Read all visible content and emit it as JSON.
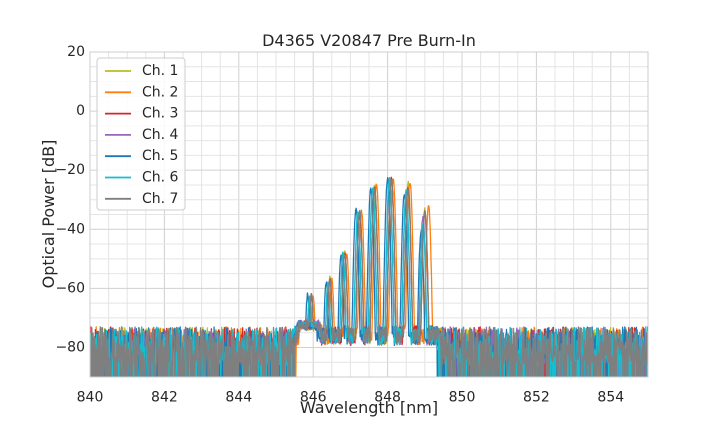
{
  "chart_data": {
    "type": "line",
    "title": "D4365 V20847 Pre Burn-In",
    "xlabel": "Wavelength [nm]",
    "ylabel": "Optical Power [dB]",
    "xlim": [
      840,
      855
    ],
    "ylim": [
      -90,
      20
    ],
    "xticks": [
      840,
      842,
      844,
      846,
      848,
      850,
      852,
      854
    ],
    "xtick_labels": [
      "840",
      "842",
      "844",
      "846",
      "848",
      "850",
      "852",
      "854"
    ],
    "yticks": [
      20,
      0,
      -20,
      -40,
      -60,
      -80
    ],
    "ytick_labels": [
      "20",
      "0",
      "−20",
      "−40",
      "−60",
      "−80"
    ],
    "grid": true,
    "legend_position": "top-left",
    "series": [
      {
        "name": "Ch. 1",
        "color": "#bcbd22",
        "peaks": [
          [
            845.95,
            -62
          ],
          [
            846.45,
            -56
          ],
          [
            846.85,
            -47
          ],
          [
            847.25,
            -34
          ],
          [
            847.65,
            -25
          ],
          [
            848.1,
            -23
          ],
          [
            848.55,
            -24
          ],
          [
            849.0,
            -33
          ]
        ]
      },
      {
        "name": "Ch. 2",
        "color": "#ff7f0e",
        "peaks": [
          [
            846.0,
            -63
          ],
          [
            846.5,
            -57
          ],
          [
            846.9,
            -48
          ],
          [
            847.3,
            -34
          ],
          [
            847.7,
            -25
          ],
          [
            848.15,
            -23
          ],
          [
            848.6,
            -24
          ],
          [
            849.1,
            -32
          ]
        ]
      },
      {
        "name": "Ch. 3",
        "color": "#d62728",
        "peaks": [
          [
            845.95,
            -62
          ],
          [
            846.45,
            -57
          ],
          [
            846.85,
            -48
          ],
          [
            847.25,
            -35
          ],
          [
            847.65,
            -26
          ],
          [
            848.1,
            -23
          ],
          [
            848.55,
            -26
          ],
          [
            849.0,
            -34
          ]
        ]
      },
      {
        "name": "Ch. 4",
        "color": "#9467bd",
        "peaks": [
          [
            845.9,
            -63
          ],
          [
            846.4,
            -58
          ],
          [
            846.8,
            -49
          ],
          [
            847.2,
            -35
          ],
          [
            847.6,
            -27
          ],
          [
            848.05,
            -24
          ],
          [
            848.5,
            -27
          ],
          [
            848.95,
            -36
          ]
        ]
      },
      {
        "name": "Ch. 5",
        "color": "#1f77b4",
        "peaks": [
          [
            845.85,
            -62
          ],
          [
            846.35,
            -58
          ],
          [
            846.75,
            -49
          ],
          [
            847.15,
            -33
          ],
          [
            847.55,
            -26
          ],
          [
            848.0,
            -23
          ],
          [
            848.45,
            -28
          ],
          [
            848.9,
            -41
          ]
        ]
      },
      {
        "name": "Ch. 6",
        "color": "#17becf",
        "peaks": [
          [
            845.9,
            -63
          ],
          [
            846.4,
            -58
          ],
          [
            846.8,
            -48
          ],
          [
            847.2,
            -34
          ],
          [
            847.6,
            -26
          ],
          [
            848.05,
            -23
          ],
          [
            848.5,
            -27
          ],
          [
            848.95,
            -38
          ]
        ]
      },
      {
        "name": "Ch. 7",
        "color": "#7f7f7f",
        "peaks": [
          [
            845.95,
            -62
          ],
          [
            846.45,
            -57
          ],
          [
            846.85,
            -48
          ],
          [
            847.25,
            -34
          ],
          [
            847.65,
            -26
          ],
          [
            848.1,
            -23
          ],
          [
            848.55,
            -26
          ],
          [
            849.0,
            -34
          ]
        ]
      }
    ]
  }
}
